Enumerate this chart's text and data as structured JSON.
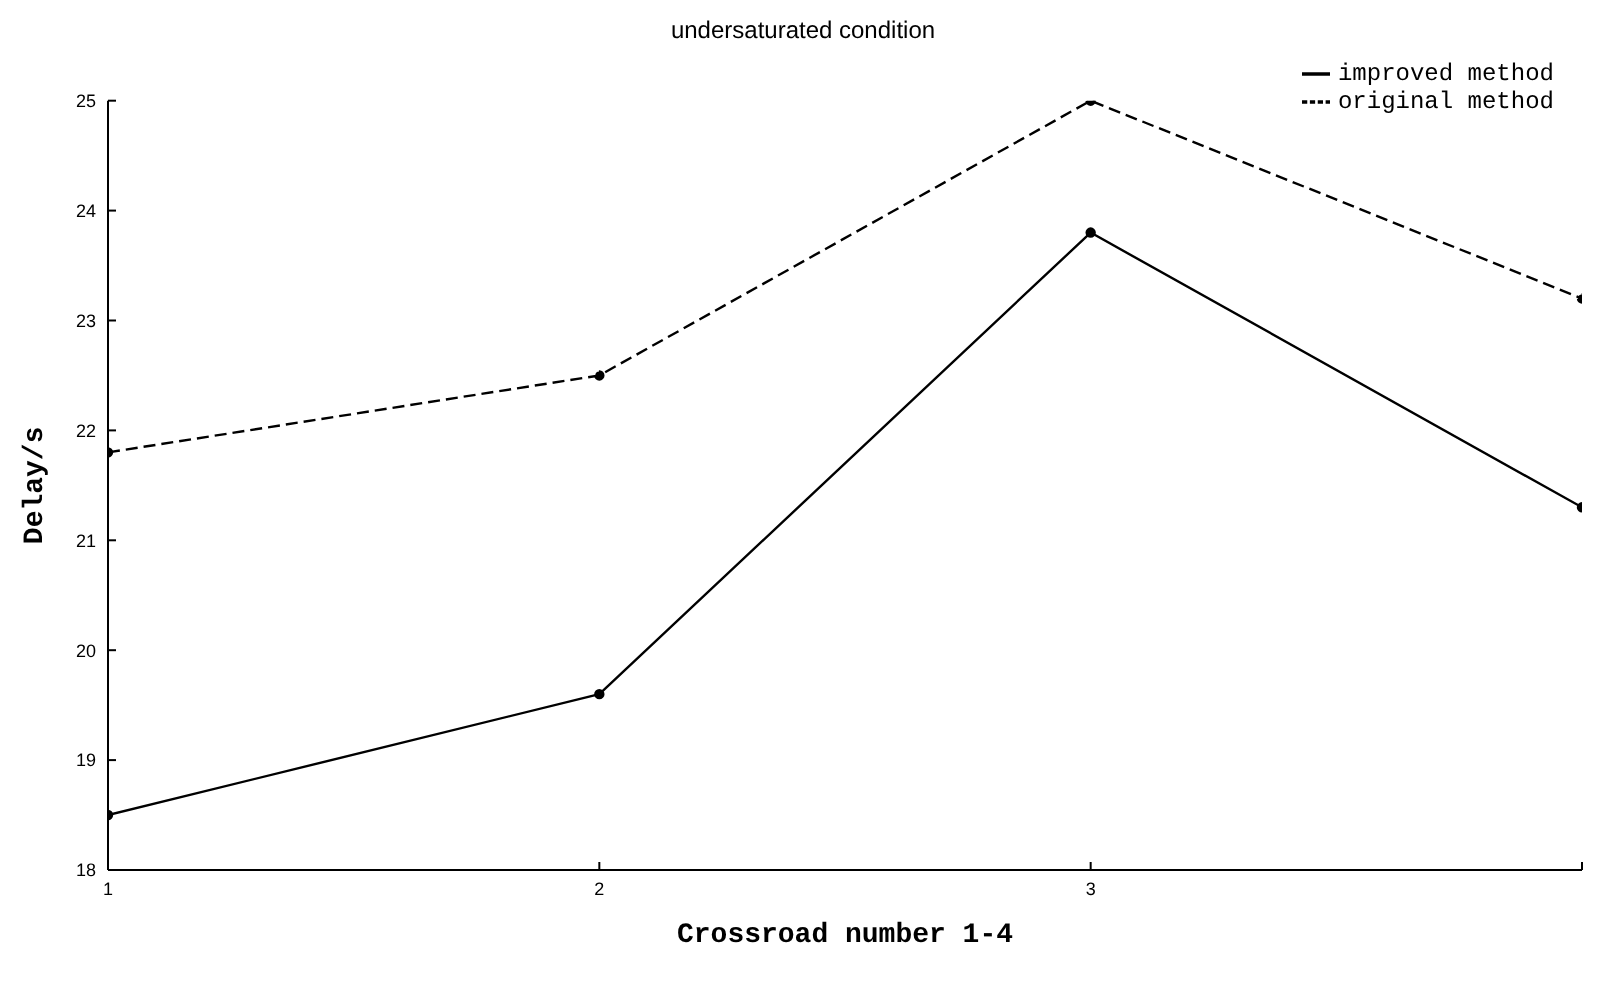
{
  "chart_data": {
    "type": "line",
    "title": "undersaturated condition",
    "xlabel": "Crossroad number 1-4",
    "ylabel": "Delay/s",
    "x": [
      1,
      2,
      3,
      4
    ],
    "series": [
      {
        "name": "improved method",
        "color": "#000000",
        "values": [
          18.5,
          19.6,
          23.8,
          21.3
        ],
        "line_style": "solid"
      },
      {
        "name": "original method",
        "color": "#000000",
        "values": [
          21.8,
          22.5,
          25.0,
          23.2
        ],
        "line_style": "dashed"
      }
    ],
    "xlim": [
      1,
      4
    ],
    "xticks": [
      1,
      2,
      3,
      {
        "value": 4,
        "label": null
      }
    ],
    "ylim": [
      18,
      25
    ],
    "yticks": [
      18,
      19,
      20,
      21,
      22,
      23,
      24,
      25
    ],
    "grid": false,
    "legend": "top right",
    "marker": "circle"
  }
}
